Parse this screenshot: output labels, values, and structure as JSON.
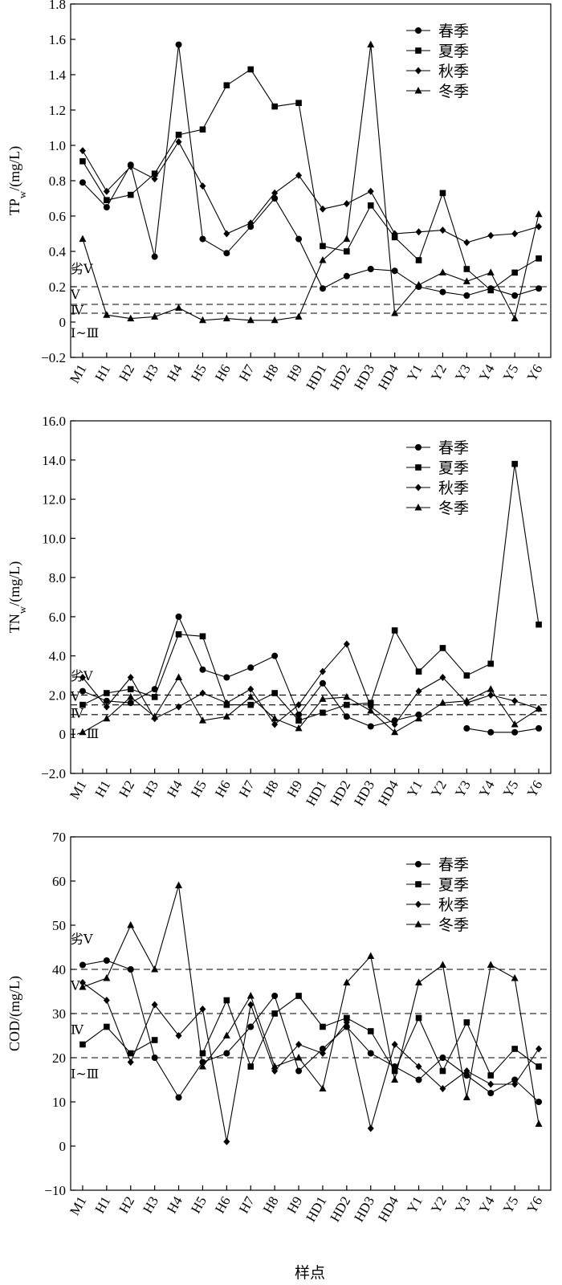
{
  "x_title": "样点",
  "chart_data": [
    {
      "type": "line",
      "ylabel": "TP_w/(mg/L)",
      "ylabel_main": "TP",
      "ylabel_sub": "w",
      "ylabel_unit": "/(mg/L)",
      "ylim": [
        -0.2,
        1.8
      ],
      "yticks": [
        -0.2,
        0,
        0.2,
        0.4,
        0.6,
        0.8,
        1.0,
        1.2,
        1.4,
        1.6,
        1.8
      ],
      "yticklabels": [
        "−0.2",
        "0",
        "0.2",
        "0.4",
        "0.6",
        "0.8",
        "1.0",
        "1.2",
        "1.4",
        "1.6",
        "1.8"
      ],
      "categories": [
        "M1",
        "H1",
        "H2",
        "H3",
        "H4",
        "H5",
        "H6",
        "H7",
        "H8",
        "H9",
        "HD1",
        "HD2",
        "HD3",
        "HD4",
        "Y1",
        "Y2",
        "Y3",
        "Y4",
        "Y5",
        "Y6"
      ],
      "legend": "top-right",
      "series": [
        {
          "name": "春季",
          "marker": "circle",
          "values": [
            0.79,
            0.65,
            0.89,
            0.37,
            1.57,
            0.47,
            0.39,
            0.54,
            0.7,
            0.47,
            0.19,
            0.26,
            0.3,
            0.29,
            0.2,
            0.17,
            0.15,
            0.19,
            0.15,
            0.19
          ]
        },
        {
          "name": "夏季",
          "marker": "square",
          "values": [
            0.91,
            0.69,
            0.72,
            0.84,
            1.06,
            1.09,
            1.34,
            1.43,
            1.22,
            1.24,
            0.43,
            0.4,
            0.66,
            0.48,
            0.35,
            0.73,
            0.3,
            0.18,
            0.28,
            0.36
          ]
        },
        {
          "name": "秋季",
          "marker": "diamond",
          "values": [
            0.97,
            0.74,
            0.88,
            0.81,
            1.02,
            0.77,
            0.5,
            0.56,
            0.73,
            0.83,
            0.64,
            0.67,
            0.74,
            0.5,
            0.51,
            0.52,
            0.45,
            0.49,
            0.5,
            0.54
          ]
        },
        {
          "name": "冬季",
          "marker": "triangle",
          "values": [
            0.47,
            0.04,
            0.02,
            0.03,
            0.08,
            0.01,
            0.02,
            0.01,
            0.01,
            0.03,
            0.35,
            0.47,
            1.57,
            0.05,
            0.21,
            0.28,
            0.23,
            0.28,
            0.02,
            0.61
          ]
        }
      ],
      "thresholds": [
        0.2,
        0.1,
        0.05
      ],
      "zones": [
        {
          "label": "劣Ⅴ",
          "y": 0.305
        },
        {
          "label": "Ⅴ",
          "y": 0.16
        },
        {
          "label": "Ⅳ",
          "y": 0.07
        },
        {
          "label": "Ⅰ~Ⅲ",
          "y": -0.06
        }
      ]
    },
    {
      "type": "line",
      "ylabel": "TN_w/(mg/L)",
      "ylabel_main": "TN",
      "ylabel_sub": "w",
      "ylabel_unit": "/(mg/L)",
      "ylim": [
        -2.0,
        16.0
      ],
      "yticks": [
        -2,
        0,
        2,
        4,
        6,
        8,
        10,
        12,
        14,
        16
      ],
      "yticklabels": [
        "−2.0",
        "0",
        "2.0",
        "4.0",
        "6.0",
        "8.0",
        "10.0",
        "12.0",
        "14.0",
        "16.0"
      ],
      "categories": [
        "M1",
        "H1",
        "H2",
        "H3",
        "H4",
        "H5",
        "H6",
        "H7",
        "H8",
        "H9",
        "HD1",
        "HD2",
        "HD3",
        "HD4",
        "Y1",
        "Y2",
        "Y3",
        "Y4",
        "Y5",
        "Y6"
      ],
      "legend": "top-right",
      "series": [
        {
          "name": "春季",
          "marker": "circle",
          "values": [
            2.2,
            1.7,
            1.6,
            2.3,
            6.0,
            3.3,
            2.9,
            3.4,
            4.0,
            1.0,
            2.6,
            0.9,
            0.4,
            0.7,
            1.0,
            null,
            0.3,
            0.1,
            0.1,
            0.3
          ]
        },
        {
          "name": "夏季",
          "marker": "square",
          "values": [
            1.5,
            2.1,
            2.3,
            1.9,
            5.1,
            5.0,
            1.5,
            1.5,
            2.1,
            0.7,
            1.1,
            1.5,
            1.6,
            5.3,
            3.2,
            4.4,
            3.0,
            3.6,
            13.8,
            5.6
          ]
        },
        {
          "name": "秋季",
          "marker": "diamond",
          "values": [
            2.9,
            1.4,
            2.9,
            0.8,
            1.4,
            2.1,
            1.6,
            2.3,
            0.5,
            1.5,
            3.2,
            4.6,
            1.4,
            0.5,
            2.2,
            2.9,
            1.6,
            2.0,
            1.7,
            1.3
          ]
        },
        {
          "name": "冬季",
          "marker": "triangle",
          "values": [
            0.1,
            0.8,
            1.9,
            0.9,
            2.9,
            0.7,
            0.9,
            1.9,
            0.8,
            0.3,
            1.8,
            1.9,
            1.2,
            0.1,
            0.8,
            1.6,
            1.7,
            2.3,
            0.5,
            1.3
          ]
        }
      ],
      "thresholds": [
        2.0,
        1.5,
        1.0
      ],
      "zones": [
        {
          "label": "劣Ⅴ",
          "y": 3.0
        },
        {
          "label": "Ⅴ",
          "y": 1.95
        },
        {
          "label": "Ⅳ",
          "y": 1.1
        },
        {
          "label": "Ⅰ~Ⅲ",
          "y": 0.05
        }
      ]
    },
    {
      "type": "line",
      "ylabel": "COD/(mg/L)",
      "ylabel_main": "COD",
      "ylabel_sub": "",
      "ylabel_unit": "/(mg/L)",
      "ylim": [
        -10,
        70
      ],
      "yticks": [
        -10,
        0,
        10,
        20,
        30,
        40,
        50,
        60,
        70
      ],
      "yticklabels": [
        "−10",
        "0",
        "10",
        "20",
        "30",
        "40",
        "50",
        "60",
        "70"
      ],
      "categories": [
        "M1",
        "H1",
        "H2",
        "H3",
        "H4",
        "H5",
        "H6",
        "H7",
        "H8",
        "H9",
        "HD1",
        "HD2",
        "HD3",
        "HD4",
        "Y1",
        "Y2",
        "Y3",
        "Y4",
        "Y5",
        "Y6"
      ],
      "legend": "top-right",
      "series": [
        {
          "name": "春季",
          "marker": "circle",
          "values": [
            41,
            42,
            40,
            20,
            11,
            19,
            21,
            27,
            34,
            17,
            22,
            27,
            21,
            18,
            15,
            20,
            16,
            12,
            15,
            10
          ]
        },
        {
          "name": "夏季",
          "marker": "square",
          "values": [
            23,
            27,
            21,
            24,
            null,
            21,
            33,
            18,
            30,
            34,
            27,
            29,
            26,
            17,
            29,
            17,
            28,
            16,
            22,
            18
          ]
        },
        {
          "name": "秋季",
          "marker": "diamond",
          "values": [
            37,
            33,
            19,
            32,
            25,
            31,
            1,
            32,
            17,
            23,
            21,
            28,
            4,
            23,
            18,
            13,
            17,
            14,
            14,
            22
          ]
        },
        {
          "name": "冬季",
          "marker": "triangle",
          "values": [
            36,
            38,
            50,
            40,
            59,
            18,
            25,
            34,
            18,
            20,
            13,
            37,
            43,
            15,
            37,
            41,
            11,
            41,
            38,
            5
          ]
        }
      ],
      "thresholds": [
        40,
        30,
        20
      ],
      "zones": [
        {
          "label": "劣Ⅴ",
          "y": 47
        },
        {
          "label": "Ⅴ",
          "y": 36.5
        },
        {
          "label": "Ⅳ",
          "y": 26.5
        },
        {
          "label": "Ⅰ~Ⅲ",
          "y": 16.5
        }
      ]
    }
  ]
}
